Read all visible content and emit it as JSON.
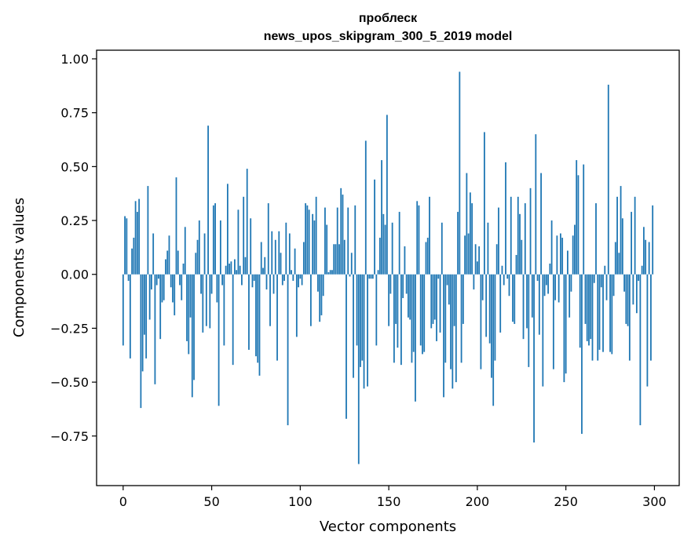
{
  "chart_data": {
    "type": "bar",
    "title": "проблеск",
    "subtitle": "news_upos_skipgram_300_5_2019 model",
    "xlabel": "Vector components",
    "ylabel": "Components values",
    "xlim": [
      -15,
      314
    ],
    "ylim": [
      -0.98,
      1.04
    ],
    "xticks": [
      0,
      50,
      100,
      150,
      200,
      250,
      300
    ],
    "yticks": [
      -0.75,
      -0.5,
      -0.25,
      0.0,
      0.25,
      0.5,
      0.75,
      1.0
    ],
    "xtick_labels": [
      "0",
      "50",
      "100",
      "150",
      "200",
      "250",
      "300"
    ],
    "ytick_labels": [
      "−0.75",
      "−0.50",
      "−0.25",
      "0.00",
      "0.25",
      "0.50",
      "0.75",
      "1.00"
    ],
    "bar_color": "#1f77b4",
    "grid": false,
    "categories": "components 0–299",
    "values": [
      -0.33,
      0.27,
      0.26,
      -0.03,
      -0.39,
      0.12,
      0.17,
      0.34,
      0.29,
      0.35,
      -0.62,
      -0.45,
      -0.28,
      -0.39,
      0.41,
      -0.21,
      -0.07,
      0.19,
      -0.51,
      -0.05,
      -0.02,
      -0.3,
      -0.13,
      -0.12,
      0.07,
      0.11,
      0.18,
      -0.06,
      -0.13,
      -0.19,
      0.45,
      0.11,
      -0.05,
      -0.12,
      0.05,
      0.22,
      -0.31,
      -0.37,
      -0.2,
      -0.57,
      -0.49,
      0.1,
      0.16,
      0.25,
      -0.09,
      -0.27,
      0.19,
      -0.24,
      0.69,
      -0.25,
      -0.09,
      0.32,
      0.33,
      -0.13,
      -0.61,
      0.25,
      -0.05,
      -0.33,
      0.04,
      0.42,
      0.05,
      0.06,
      -0.42,
      0.07,
      0.02,
      0.3,
      0.04,
      -0.05,
      0.36,
      0.08,
      0.49,
      -0.35,
      0.26,
      -0.06,
      -0.03,
      -0.38,
      -0.41,
      -0.47,
      0.15,
      0.03,
      0.08,
      -0.07,
      0.33,
      -0.24,
      0.2,
      -0.09,
      0.16,
      -0.4,
      0.2,
      0.1,
      -0.05,
      -0.03,
      0.24,
      -0.7,
      0.19,
      0.02,
      -0.03,
      0.12,
      -0.29,
      -0.06,
      -0.02,
      -0.05,
      0.15,
      0.33,
      0.32,
      0.3,
      -0.24,
      0.28,
      0.25,
      0.36,
      -0.08,
      -0.22,
      -0.19,
      -0.1,
      0.31,
      0.23,
      0.01,
      0.02,
      0.02,
      0.14,
      0.14,
      0.31,
      0.14,
      0.4,
      0.37,
      0.16,
      -0.67,
      0.31,
      -0.01,
      0.1,
      -0.48,
      0.32,
      -0.33,
      -0.88,
      -0.43,
      -0.4,
      -0.53,
      0.62,
      -0.52,
      -0.02,
      -0.02,
      -0.02,
      0.44,
      -0.33,
      0.02,
      0.17,
      0.53,
      0.28,
      0.23,
      0.74,
      -0.24,
      -0.09,
      0.24,
      -0.41,
      -0.23,
      -0.34,
      0.29,
      -0.42,
      -0.11,
      0.13,
      -0.09,
      -0.2,
      -0.21,
      -0.41,
      -0.36,
      -0.59,
      0.34,
      0.32,
      -0.33,
      -0.37,
      -0.36,
      0.15,
      0.17,
      0.36,
      -0.25,
      -0.23,
      -0.21,
      -0.31,
      -0.02,
      -0.27,
      0.24,
      -0.57,
      -0.41,
      -0.05,
      -0.14,
      -0.44,
      -0.53,
      -0.24,
      -0.5,
      0.29,
      0.94,
      -0.41,
      -0.23,
      0.18,
      0.47,
      0.19,
      0.38,
      0.33,
      -0.07,
      0.14,
      0.06,
      0.13,
      -0.44,
      -0.12,
      0.66,
      -0.29,
      0.24,
      -0.32,
      -0.48,
      -0.61,
      -0.4,
      0.14,
      0.31,
      -0.27,
      0.04,
      -0.05,
      0.52,
      -0.02,
      -0.1,
      0.36,
      -0.22,
      -0.23,
      0.09,
      0.36,
      0.28,
      0.16,
      -0.3,
      0.33,
      -0.25,
      -0.43,
      0.4,
      -0.2,
      -0.78,
      0.65,
      -0.03,
      -0.28,
      0.47,
      -0.52,
      -0.1,
      -0.05,
      -0.09,
      0.05,
      0.25,
      -0.44,
      -0.12,
      0.18,
      -0.13,
      0.19,
      0.17,
      -0.5,
      -0.46,
      0.11,
      -0.2,
      -0.08,
      0.18,
      0.23,
      0.53,
      0.46,
      -0.34,
      -0.74,
      0.51,
      -0.23,
      -0.31,
      -0.33,
      -0.3,
      -0.4,
      -0.04,
      0.33,
      -0.4,
      -0.35,
      -0.06,
      -0.36,
      0.04,
      -0.12,
      0.88,
      -0.36,
      -0.37,
      -0.1,
      0.15,
      0.36,
      0.1,
      0.41,
      0.26,
      -0.08,
      -0.23,
      -0.24,
      -0.4,
      0.29,
      -0.14,
      0.36,
      -0.18,
      -0.03,
      -0.7,
      0.04,
      0.22,
      0.16,
      -0.52,
      0.15,
      -0.4,
      0.32
    ]
  }
}
